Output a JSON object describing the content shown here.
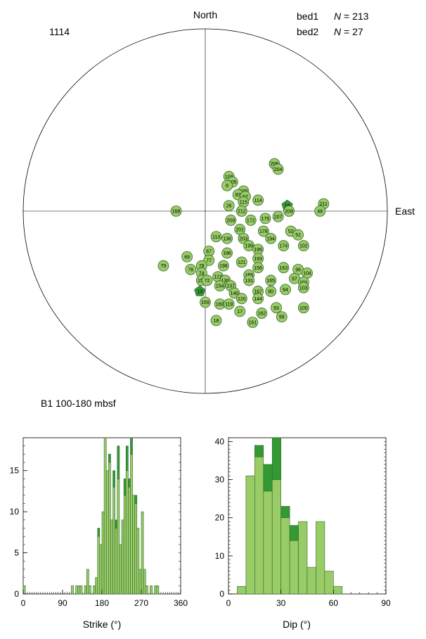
{
  "stereonet": {
    "site": "1114",
    "interval": "B1 100-180 mbsf",
    "north_label": "North",
    "east_label": "East",
    "legend": [
      {
        "name": "bed1",
        "n_label": "N",
        "n_value": "= 213"
      },
      {
        "name": "bed2",
        "n_label": "N",
        "n_value": "= 27"
      }
    ],
    "colors": {
      "bed1": "#99cc66",
      "bed2": "#339933",
      "stroke": "#336633"
    }
  },
  "chart_data": [
    {
      "type": "scatter",
      "name": "stereonet",
      "description_source": "pole plot",
      "points": [
        {
          "label": "206",
          "x": 0.38,
          "y": 0.26,
          "set": "bed1"
        },
        {
          "label": "204",
          "x": 0.4,
          "y": 0.23,
          "set": "bed1"
        },
        {
          "label": "108",
          "x": 0.13,
          "y": 0.19,
          "set": "bed1"
        },
        {
          "label": "105",
          "x": 0.15,
          "y": 0.16,
          "set": "bed1"
        },
        {
          "label": "6",
          "x": 0.12,
          "y": 0.14,
          "set": "bed1"
        },
        {
          "label": "109",
          "x": 0.21,
          "y": 0.11,
          "set": "bed1"
        },
        {
          "label": "83",
          "x": 0.18,
          "y": 0.09,
          "set": "bed1"
        },
        {
          "label": "97",
          "x": 0.22,
          "y": 0.08,
          "set": "bed1"
        },
        {
          "label": "114",
          "x": 0.29,
          "y": 0.06,
          "set": "bed1"
        },
        {
          "label": "115",
          "x": 0.21,
          "y": 0.05,
          "set": "bed1"
        },
        {
          "label": "26",
          "x": 0.13,
          "y": 0.03,
          "set": "bed1"
        },
        {
          "label": "19",
          "x": 0.45,
          "y": 0.03,
          "set": "bed2"
        },
        {
          "label": "211",
          "x": 0.65,
          "y": 0.04,
          "set": "bed1"
        },
        {
          "label": "48",
          "x": 0.63,
          "y": 0.0,
          "set": "bed1"
        },
        {
          "label": "168",
          "x": -0.16,
          "y": 0.0,
          "set": "bed1"
        },
        {
          "label": "212",
          "x": 0.2,
          "y": 0.0,
          "set": "bed1"
        },
        {
          "label": "208",
          "x": 0.46,
          "y": 0.0,
          "set": "bed1"
        },
        {
          "label": "207",
          "x": 0.4,
          "y": -0.03,
          "set": "bed1"
        },
        {
          "label": "175",
          "x": 0.33,
          "y": -0.04,
          "set": "bed1"
        },
        {
          "label": "172",
          "x": 0.25,
          "y": -0.05,
          "set": "bed1"
        },
        {
          "label": "209",
          "x": 0.14,
          "y": -0.05,
          "set": "bed1"
        },
        {
          "label": "52",
          "x": 0.47,
          "y": -0.11,
          "set": "bed1"
        },
        {
          "label": "51",
          "x": 0.51,
          "y": -0.13,
          "set": "bed1"
        },
        {
          "label": "201",
          "x": 0.19,
          "y": -0.1,
          "set": "bed1"
        },
        {
          "label": "178",
          "x": 0.32,
          "y": -0.11,
          "set": "bed1"
        },
        {
          "label": "113",
          "x": 0.06,
          "y": -0.14,
          "set": "bed1"
        },
        {
          "label": "136",
          "x": 0.12,
          "y": -0.15,
          "set": "bed1"
        },
        {
          "label": "203",
          "x": 0.21,
          "y": -0.15,
          "set": "bed1"
        },
        {
          "label": "194",
          "x": 0.36,
          "y": -0.15,
          "set": "bed1"
        },
        {
          "label": "174",
          "x": 0.43,
          "y": -0.19,
          "set": "bed1"
        },
        {
          "label": "102",
          "x": 0.54,
          "y": -0.19,
          "set": "bed1"
        },
        {
          "label": "199",
          "x": 0.24,
          "y": -0.19,
          "set": "bed1"
        },
        {
          "label": "195",
          "x": 0.29,
          "y": -0.21,
          "set": "bed1"
        },
        {
          "label": "196",
          "x": 0.12,
          "y": -0.23,
          "set": "bed1"
        },
        {
          "label": "67",
          "x": 0.02,
          "y": -0.22,
          "set": "bed1"
        },
        {
          "label": "69",
          "x": -0.1,
          "y": -0.25,
          "set": "bed1"
        },
        {
          "label": "77",
          "x": 0.02,
          "y": -0.27,
          "set": "bed1"
        },
        {
          "label": "193",
          "x": 0.29,
          "y": -0.26,
          "set": "bed1"
        },
        {
          "label": "155",
          "x": 0.24,
          "y": -0.35,
          "set": "bed1"
        },
        {
          "label": "121",
          "x": 0.2,
          "y": -0.28,
          "set": "bed1"
        },
        {
          "label": "79",
          "x": -0.23,
          "y": -0.3,
          "set": "bed1"
        },
        {
          "label": "78",
          "x": -0.02,
          "y": -0.3,
          "set": "bed1"
        },
        {
          "label": "198",
          "x": 0.1,
          "y": -0.3,
          "set": "bed1"
        },
        {
          "label": "76",
          "x": -0.08,
          "y": -0.32,
          "set": "bed1"
        },
        {
          "label": "74",
          "x": -0.02,
          "y": -0.34,
          "set": "bed1"
        },
        {
          "label": "163",
          "x": 0.43,
          "y": -0.31,
          "set": "bed1"
        },
        {
          "label": "96",
          "x": 0.51,
          "y": -0.32,
          "set": "bed1"
        },
        {
          "label": "104",
          "x": 0.56,
          "y": -0.34,
          "set": "bed1"
        },
        {
          "label": "156",
          "x": 0.29,
          "y": -0.31,
          "set": "bed1"
        },
        {
          "label": "122",
          "x": 0.07,
          "y": -0.36,
          "set": "bed1"
        },
        {
          "label": "153",
          "x": -0.02,
          "y": -0.38,
          "set": "bed1"
        },
        {
          "label": "72",
          "x": 0.01,
          "y": -0.38,
          "set": "bed1"
        },
        {
          "label": "130",
          "x": 0.11,
          "y": -0.38,
          "set": "bed1"
        },
        {
          "label": "131",
          "x": 0.24,
          "y": -0.38,
          "set": "bed1"
        },
        {
          "label": "165",
          "x": 0.36,
          "y": -0.38,
          "set": "bed1"
        },
        {
          "label": "97",
          "x": 0.49,
          "y": -0.37,
          "set": "bed1"
        },
        {
          "label": "101",
          "x": 0.54,
          "y": -0.39,
          "set": "bed1"
        },
        {
          "label": "154",
          "x": 0.08,
          "y": -0.41,
          "set": "bed1"
        },
        {
          "label": "137",
          "x": 0.14,
          "y": -0.41,
          "set": "bed1"
        },
        {
          "label": "103",
          "x": 0.54,
          "y": -0.42,
          "set": "bed1"
        },
        {
          "label": "13",
          "x": -0.03,
          "y": -0.44,
          "set": "bed2"
        },
        {
          "label": "140",
          "x": 0.16,
          "y": -0.45,
          "set": "bed1"
        },
        {
          "label": "167",
          "x": 0.29,
          "y": -0.44,
          "set": "bed1"
        },
        {
          "label": "80",
          "x": 0.36,
          "y": -0.44,
          "set": "bed1"
        },
        {
          "label": "94",
          "x": 0.44,
          "y": -0.43,
          "set": "bed1"
        },
        {
          "label": "144",
          "x": 0.29,
          "y": -0.48,
          "set": "bed1"
        },
        {
          "label": "120",
          "x": 0.2,
          "y": -0.48,
          "set": "bed1"
        },
        {
          "label": "159",
          "x": 0.0,
          "y": -0.5,
          "set": "bed1"
        },
        {
          "label": "160",
          "x": 0.08,
          "y": -0.51,
          "set": "bed1"
        },
        {
          "label": "119",
          "x": 0.13,
          "y": -0.51,
          "set": "bed1"
        },
        {
          "label": "93",
          "x": 0.39,
          "y": -0.53,
          "set": "bed1"
        },
        {
          "label": "100",
          "x": 0.54,
          "y": -0.53,
          "set": "bed1"
        },
        {
          "label": "17",
          "x": 0.19,
          "y": -0.55,
          "set": "bed1"
        },
        {
          "label": "162",
          "x": 0.31,
          "y": -0.56,
          "set": "bed1"
        },
        {
          "label": "99",
          "x": 0.42,
          "y": -0.58,
          "set": "bed1"
        },
        {
          "label": "18",
          "x": 0.06,
          "y": -0.6,
          "set": "bed1"
        },
        {
          "label": "161",
          "x": 0.26,
          "y": -0.61,
          "set": "bed1"
        }
      ]
    },
    {
      "type": "bar",
      "name": "strike-histogram",
      "xlabel": "Strike (°)",
      "xlim": [
        0,
        360
      ],
      "ylim": [
        0,
        19
      ],
      "xticks": [
        0,
        90,
        180,
        270,
        360
      ],
      "yticks": [
        0,
        5,
        10,
        15
      ],
      "bin_width": 5,
      "series": [
        {
          "name": "bed1",
          "bins_start": [
            0,
            110,
            120,
            125,
            130,
            140,
            145,
            150,
            160,
            165,
            170,
            175,
            180,
            185,
            190,
            195,
            200,
            205,
            210,
            215,
            220,
            225,
            230,
            235,
            240,
            245,
            250,
            255,
            260,
            265,
            270,
            275,
            280,
            290,
            300,
            305
          ],
          "values": [
            1,
            1,
            1,
            1,
            1,
            1,
            3,
            1,
            1,
            2,
            7,
            6,
            10,
            19,
            15,
            16,
            9,
            13,
            8,
            14,
            6,
            9,
            12,
            15,
            13,
            17,
            12,
            11,
            8,
            3,
            10,
            3,
            1,
            1,
            1,
            1
          ]
        },
        {
          "name": "bed2",
          "bins_start": [
            0,
            110,
            120,
            125,
            130,
            140,
            145,
            150,
            160,
            165,
            170,
            175,
            180,
            185,
            190,
            195,
            200,
            205,
            210,
            215,
            220,
            225,
            230,
            235,
            240,
            245,
            250,
            255,
            260,
            265,
            270,
            275,
            280,
            290,
            300,
            305
          ],
          "values": [
            0,
            0,
            0,
            0,
            0,
            0,
            0,
            0,
            0,
            0,
            1,
            0,
            0,
            0,
            0,
            1,
            0,
            2,
            1,
            4,
            0,
            0,
            2,
            3,
            1,
            2,
            0,
            1,
            0,
            0,
            0,
            0,
            0,
            0,
            0,
            0
          ]
        }
      ]
    },
    {
      "type": "bar",
      "name": "dip-histogram",
      "xlabel": "Dip (°)",
      "xlim": [
        0,
        90
      ],
      "ylim": [
        0,
        41
      ],
      "xticks": [
        0,
        30,
        60,
        90
      ],
      "yticks": [
        0,
        10,
        20,
        30,
        40
      ],
      "bin_width": 5,
      "series": [
        {
          "name": "bed1",
          "bins_start": [
            5,
            10,
            15,
            20,
            25,
            30,
            35,
            40,
            45,
            50,
            55,
            60
          ],
          "values": [
            2,
            31,
            36,
            27,
            30,
            20,
            14,
            19,
            7,
            19,
            6,
            2
          ]
        },
        {
          "name": "bed2",
          "bins_start": [
            5,
            10,
            15,
            20,
            25,
            30,
            35,
            40,
            45,
            50,
            55,
            60
          ],
          "values": [
            0,
            0,
            3,
            7,
            11,
            3,
            4,
            0,
            0,
            0,
            0,
            0
          ]
        }
      ]
    }
  ]
}
